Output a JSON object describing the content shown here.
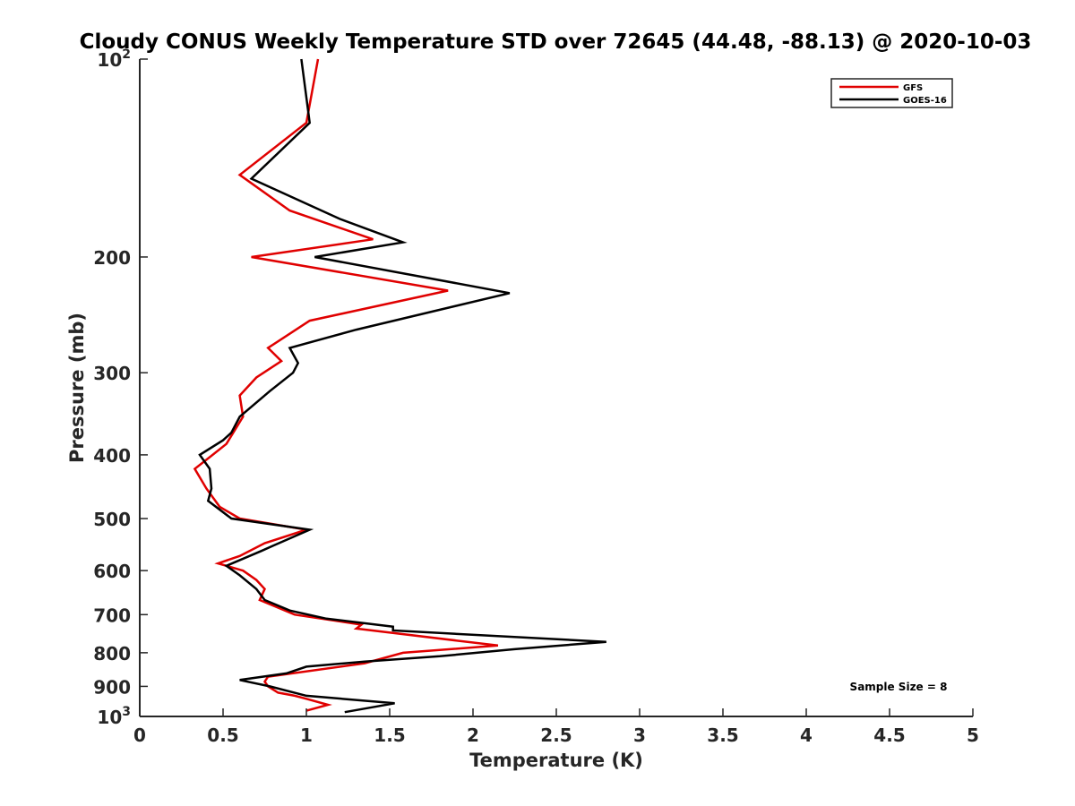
{
  "chart_data": {
    "type": "line",
    "title": "Cloudy CONUS Weekly Temperature STD over 72645 (44.48, -88.13) @ 2020-10-03",
    "xlabel": "Temperature (K)",
    "ylabel": "Pressure (mb)",
    "xlim": [
      0,
      5
    ],
    "ylim": [
      100,
      1000
    ],
    "y_scale": "log",
    "y_reversed": true,
    "x_ticks": [
      0,
      0.5,
      1,
      1.5,
      2,
      2.5,
      3,
      3.5,
      4,
      4.5,
      5
    ],
    "x_tick_labels": [
      "0",
      "0.5",
      "1",
      "1.5",
      "2",
      "2.5",
      "3",
      "3.5",
      "4",
      "4.5",
      "5"
    ],
    "y_ticks": [
      100,
      200,
      300,
      400,
      500,
      600,
      700,
      800,
      900,
      1000
    ],
    "y_tick_labels": [
      {
        "base": "10",
        "exp": "2"
      },
      {
        "base": "200",
        "exp": ""
      },
      {
        "base": "300",
        "exp": ""
      },
      {
        "base": "400",
        "exp": ""
      },
      {
        "base": "500",
        "exp": ""
      },
      {
        "base": "600",
        "exp": ""
      },
      {
        "base": "700",
        "exp": ""
      },
      {
        "base": "800",
        "exp": ""
      },
      {
        "base": "900",
        "exp": ""
      },
      {
        "base": "10",
        "exp": "3"
      }
    ],
    "grid": false,
    "legend_position": "top-right",
    "annotation": "Sample Size = 8",
    "series": [
      {
        "name": "GFS",
        "color": "#e00000",
        "points": [
          [
            1.07,
            100
          ],
          [
            1.0,
            125
          ],
          [
            0.6,
            150
          ],
          [
            0.9,
            170
          ],
          [
            1.4,
            188
          ],
          [
            0.67,
            200
          ],
          [
            1.85,
            225
          ],
          [
            1.02,
            250
          ],
          [
            0.77,
            275
          ],
          [
            0.85,
            288
          ],
          [
            0.7,
            305
          ],
          [
            0.6,
            325
          ],
          [
            0.62,
            350
          ],
          [
            0.52,
            385
          ],
          [
            0.41,
            405
          ],
          [
            0.33,
            420
          ],
          [
            0.4,
            450
          ],
          [
            0.48,
            480
          ],
          [
            0.6,
            500
          ],
          [
            1.0,
            520
          ],
          [
            0.75,
            545
          ],
          [
            0.6,
            570
          ],
          [
            0.47,
            585
          ],
          [
            0.62,
            600
          ],
          [
            0.7,
            620
          ],
          [
            0.75,
            640
          ],
          [
            0.72,
            665
          ],
          [
            0.93,
            700
          ],
          [
            1.33,
            725
          ],
          [
            1.3,
            735
          ],
          [
            2.15,
            780
          ],
          [
            1.58,
            800
          ],
          [
            1.35,
            830
          ],
          [
            0.77,
            870
          ],
          [
            0.75,
            885
          ],
          [
            0.77,
            900
          ],
          [
            0.83,
            920
          ],
          [
            0.93,
            930
          ],
          [
            1.0,
            940
          ],
          [
            1.13,
            960
          ],
          [
            1.0,
            980
          ]
        ]
      },
      {
        "name": "GOES-16",
        "color": "#000000",
        "points": [
          [
            0.97,
            100
          ],
          [
            1.02,
            125
          ],
          [
            0.67,
            152
          ],
          [
            1.2,
            175
          ],
          [
            1.58,
            190
          ],
          [
            1.05,
            200
          ],
          [
            2.22,
            227
          ],
          [
            1.3,
            258
          ],
          [
            0.9,
            275
          ],
          [
            0.95,
            290
          ],
          [
            0.92,
            300
          ],
          [
            0.78,
            320
          ],
          [
            0.6,
            350
          ],
          [
            0.55,
            370
          ],
          [
            0.5,
            380
          ],
          [
            0.36,
            400
          ],
          [
            0.42,
            420
          ],
          [
            0.43,
            450
          ],
          [
            0.41,
            470
          ],
          [
            0.55,
            500
          ],
          [
            1.02,
            520
          ],
          [
            0.8,
            550
          ],
          [
            0.73,
            560
          ],
          [
            0.52,
            590
          ],
          [
            0.6,
            610
          ],
          [
            0.7,
            640
          ],
          [
            0.75,
            665
          ],
          [
            0.9,
            690
          ],
          [
            1.12,
            710
          ],
          [
            1.52,
            730
          ],
          [
            1.52,
            740
          ],
          [
            2.8,
            770
          ],
          [
            2.25,
            790
          ],
          [
            1.8,
            810
          ],
          [
            1.35,
            825
          ],
          [
            1.0,
            840
          ],
          [
            0.88,
            860
          ],
          [
            0.6,
            880
          ],
          [
            0.78,
            900
          ],
          [
            1.0,
            930
          ],
          [
            1.53,
            955
          ],
          [
            1.23,
            985
          ]
        ]
      }
    ]
  }
}
